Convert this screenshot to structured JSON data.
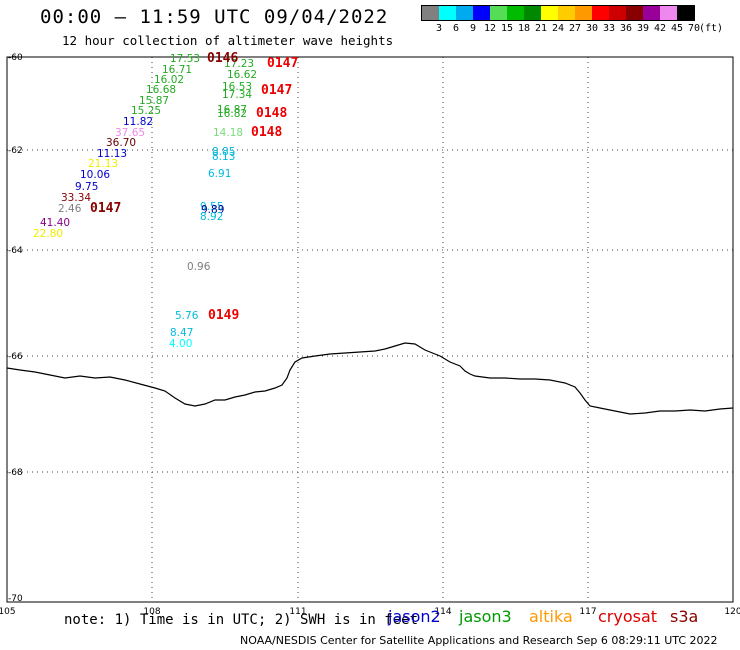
{
  "header": {
    "title": "00:00 – 11:59 UTC 09/04/2022",
    "subtitle": "12 hour collection of altimeter wave heights"
  },
  "legend": {
    "colors": [
      "#808080",
      "#00ffff",
      "#00aaee",
      "#0000ff",
      "#55dd55",
      "#00bb00",
      "#008800",
      "#ffff00",
      "#ffcc00",
      "#ff9900",
      "#ff0000",
      "#cc0000",
      "#880000",
      "#990099",
      "#ee88ee",
      "#000000"
    ],
    "labels": [
      "3",
      "6",
      "9",
      "12",
      "15",
      "18",
      "21",
      "24",
      "27",
      "30",
      "33",
      "36",
      "39",
      "42",
      "45",
      "70",
      "(ft)"
    ]
  },
  "map": {
    "lon_labels": [
      "105",
      "108",
      "111",
      "114",
      "117",
      "120"
    ],
    "lat_labels": [
      "-60",
      "-62",
      "-64",
      "-66",
      "-68",
      "-70"
    ]
  },
  "observations": [
    {
      "text": "17.53",
      "color": "#22aa22"
    },
    {
      "text": "16.71",
      "color": "#22aa22"
    },
    {
      "text": "16.02",
      "color": "#22aa22"
    },
    {
      "text": "16.68",
      "color": "#22aa22"
    },
    {
      "text": "15.87",
      "color": "#22aa22"
    },
    {
      "text": "15.25",
      "color": "#22aa22"
    },
    {
      "text": "11.82",
      "color": "#0000cc"
    },
    {
      "text": "37.65",
      "color": "#ee88ee"
    },
    {
      "text": "36.70",
      "color": "#660000"
    },
    {
      "text": "11.13",
      "color": "#0000cc"
    },
    {
      "text": "21.13",
      "color": "#eeee00"
    },
    {
      "text": "10.06",
      "color": "#0000cc"
    },
    {
      "text": "9.75",
      "color": "#0000cc"
    },
    {
      "text": "33.34",
      "color": "#880000"
    },
    {
      "text": "2.46",
      "color": "#808080"
    },
    {
      "text": "41.40",
      "color": "#880088"
    },
    {
      "text": "22.80",
      "color": "#eeee00"
    },
    {
      "text": "17.23",
      "color": "#22aa22"
    },
    {
      "text": "16.62",
      "color": "#22aa22"
    },
    {
      "text": "16.53",
      "color": "#22aa22"
    },
    {
      "text": "17.34",
      "color": "#22aa22"
    },
    {
      "text": "16.87",
      "color": "#22aa22"
    },
    {
      "text": "16.82",
      "color": "#22aa22"
    },
    {
      "text": "14.18",
      "color": "#77dd77"
    },
    {
      "text": "8.85",
      "color": "#00bbdd"
    },
    {
      "text": "8.13",
      "color": "#00bbdd"
    },
    {
      "text": "6.91",
      "color": "#00bbdd"
    },
    {
      "text": "9.55",
      "color": "#00bbdd"
    },
    {
      "text": "9.89",
      "color": "#00008b"
    },
    {
      "text": "8.92",
      "color": "#00bbdd"
    },
    {
      "text": "0.96",
      "color": "#808080"
    },
    {
      "text": "5.76",
      "color": "#00bbdd"
    },
    {
      "text": "8.47",
      "color": "#00bbdd"
    },
    {
      "text": "4.00",
      "color": "#00ffff"
    }
  ],
  "passes": [
    {
      "text": "0146",
      "color": "#880000"
    },
    {
      "text": "0147",
      "color": "#ee0000"
    },
    {
      "text": "0147",
      "color": "#ee0000"
    },
    {
      "text": "0148",
      "color": "#ee0000"
    },
    {
      "text": "0148",
      "color": "#ee0000"
    },
    {
      "text": "0147",
      "color": "#880000"
    },
    {
      "text": "0149",
      "color": "#ee0000"
    }
  ],
  "footer": {
    "note": "note: 1) Time is in UTC; 2) SWH is in feet",
    "credit": "NOAA/NESDIS Center for Satellite Applications and Research   Sep  6 08:29:11 UTC 2022",
    "satellites": [
      {
        "name": "jason2",
        "color": "#0000cc"
      },
      {
        "name": "jason3",
        "color": "#009900"
      },
      {
        "name": "altika",
        "color": "#ff9900"
      },
      {
        "name": "cryosat",
        "color": "#dd0000"
      },
      {
        "name": "s3a",
        "color": "#880000"
      }
    ]
  }
}
